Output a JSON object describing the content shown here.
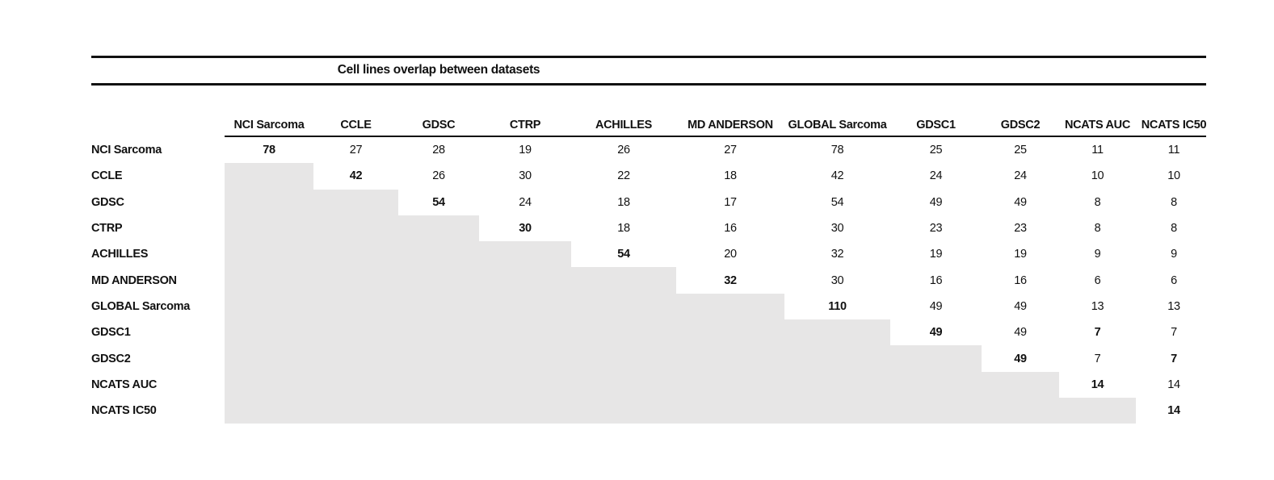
{
  "title": "Cell lines overlap between datasets",
  "table": {
    "columns": [
      "NCI Sarcoma",
      "CCLE",
      "GDSC",
      "CTRP",
      "ACHILLES",
      "MD ANDERSON",
      "GLOBAL Sarcoma",
      "GDSC1",
      "GDSC2",
      "NCATS AUC",
      "NCATS IC50"
    ],
    "rows": [
      {
        "label": "NCI Sarcoma",
        "values": [
          78,
          27,
          28,
          19,
          26,
          27,
          78,
          25,
          25,
          11,
          11
        ],
        "bold_indices": [
          0
        ]
      },
      {
        "label": "CCLE",
        "values": [
          null,
          42,
          26,
          30,
          22,
          18,
          42,
          24,
          24,
          10,
          10
        ],
        "bold_indices": [
          1
        ]
      },
      {
        "label": "GDSC",
        "values": [
          null,
          null,
          54,
          24,
          18,
          17,
          54,
          49,
          49,
          8,
          8
        ],
        "bold_indices": [
          2
        ]
      },
      {
        "label": "CTRP",
        "values": [
          null,
          null,
          null,
          30,
          18,
          16,
          30,
          23,
          23,
          8,
          8
        ],
        "bold_indices": [
          3
        ]
      },
      {
        "label": "ACHILLES",
        "values": [
          null,
          null,
          null,
          null,
          54,
          20,
          32,
          19,
          19,
          9,
          9
        ],
        "bold_indices": [
          4
        ]
      },
      {
        "label": "MD ANDERSON",
        "values": [
          null,
          null,
          null,
          null,
          null,
          32,
          30,
          16,
          16,
          6,
          6
        ],
        "bold_indices": [
          5
        ]
      },
      {
        "label": "GLOBAL Sarcoma",
        "values": [
          null,
          null,
          null,
          null,
          null,
          null,
          110,
          49,
          49,
          13,
          13
        ],
        "bold_indices": [
          6
        ]
      },
      {
        "label": "GDSC1",
        "values": [
          null,
          null,
          null,
          null,
          null,
          null,
          null,
          49,
          49,
          7,
          7
        ],
        "bold_indices": [
          7,
          9
        ]
      },
      {
        "label": "GDSC2",
        "values": [
          null,
          null,
          null,
          null,
          null,
          null,
          null,
          null,
          49,
          7,
          7
        ],
        "bold_indices": [
          8,
          10
        ]
      },
      {
        "label": "NCATS AUC",
        "values": [
          null,
          null,
          null,
          null,
          null,
          null,
          null,
          null,
          null,
          14,
          14
        ],
        "bold_indices": [
          9
        ]
      },
      {
        "label": "NCATS IC50",
        "values": [
          null,
          null,
          null,
          null,
          null,
          null,
          null,
          null,
          null,
          null,
          14
        ],
        "bold_indices": [
          10
        ]
      }
    ]
  },
  "colors": {
    "background": "#ffffff",
    "text": "#111111",
    "rule": "#111111",
    "shaded_cell": "#e7e6e6"
  }
}
